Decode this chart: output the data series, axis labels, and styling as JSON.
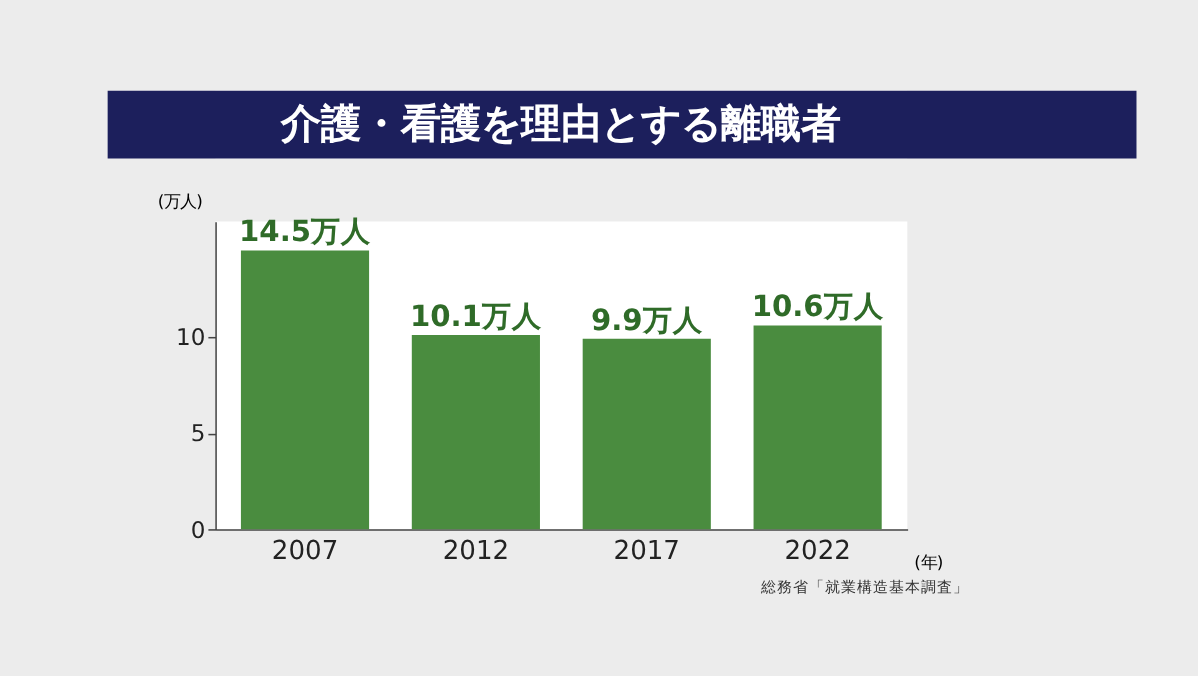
{
  "chart_data": {
    "type": "bar",
    "title": "介護・看護を理由とする離職者",
    "categories": [
      "2007",
      "2012",
      "2017",
      "2022"
    ],
    "values": [
      14.5,
      10.1,
      9.9,
      10.6
    ],
    "value_labels": [
      "14.5万人",
      "10.1万人",
      "9.9万人",
      "10.6万人"
    ],
    "color": "#4a8c3f",
    "ylim": [
      0,
      16
    ],
    "yticks": [
      0,
      5,
      10
    ],
    "ylabel": "(万人)",
    "xlabel": "(年)",
    "annotations": [
      "総務省「就業構造基本調査」"
    ]
  }
}
